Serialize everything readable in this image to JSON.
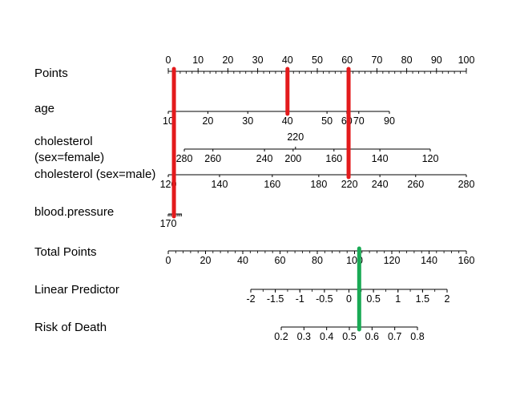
{
  "chart_data": {
    "type": "nomogram",
    "rows": [
      {
        "id": "points",
        "label_lines": [
          "Points"
        ],
        "scale": {
          "start": 0,
          "end": 100,
          "minor_step": 2
        },
        "labels": [
          {
            "text": "0",
            "v": 0
          },
          {
            "text": "10",
            "v": 10
          },
          {
            "text": "20",
            "v": 20
          },
          {
            "text": "30",
            "v": 30
          },
          {
            "text": "40",
            "v": 40
          },
          {
            "text": "50",
            "v": 50
          },
          {
            "text": "60",
            "v": 60
          },
          {
            "text": "70",
            "v": 70
          },
          {
            "text": "80",
            "v": 80
          },
          {
            "text": "90",
            "v": 90
          },
          {
            "text": "100",
            "v": 100
          }
        ]
      },
      {
        "id": "age",
        "label_lines": [
          "age"
        ],
        "scale": {
          "start": 0.5,
          "end": 74.2
        },
        "labels": [
          {
            "text": "10",
            "v": 0.5
          },
          {
            "text": "20",
            "v": 13.7
          },
          {
            "text": "30",
            "v": 27.0
          },
          {
            "text": "40",
            "v": 40.2
          },
          {
            "text": "50",
            "v": 53.4
          },
          {
            "text": "60",
            "v": 60.0
          },
          {
            "text": "70",
            "v": 64.0
          },
          {
            "text": "90",
            "v": 74.2
          }
        ]
      },
      {
        "id": "cholesterol-female",
        "label_lines": [
          "cholesterol",
          "(sex=female)"
        ],
        "scale": {
          "start": 5.4,
          "end": 87.9
        },
        "top_labels": [
          {
            "text": "220",
            "v": 42.7
          }
        ],
        "labels": [
          {
            "text": "280",
            "v": 5.4
          },
          {
            "text": "260",
            "v": 15.0
          },
          {
            "text": "240",
            "v": 32.3
          },
          {
            "text": "200",
            "v": 41.9
          },
          {
            "text": "160",
            "v": 55.6
          },
          {
            "text": "140",
            "v": 71.0
          },
          {
            "text": "120",
            "v": 87.9
          }
        ]
      },
      {
        "id": "cholesterol-male",
        "label_lines": [
          "cholesterol (sex=male)"
        ],
        "scale": {
          "start": 0,
          "end": 100
        },
        "labels": [
          {
            "text": "120",
            "v": 0
          },
          {
            "text": "140",
            "v": 17.2
          },
          {
            "text": "160",
            "v": 34.9
          },
          {
            "text": "180",
            "v": 50.5
          },
          {
            "text": "220",
            "v": 60.8
          },
          {
            "text": "240",
            "v": 71.0
          },
          {
            "text": "260",
            "v": 83.0
          },
          {
            "text": "280",
            "v": 100
          }
        ]
      },
      {
        "id": "blood-pressure",
        "label_lines": [
          "blood.pressure"
        ],
        "scale": {
          "start": 0,
          "end": 4.6,
          "minor_step": 0.5
        },
        "labels": [
          {
            "text": "170",
            "v": 0
          }
        ]
      },
      {
        "id": "total-points",
        "label_lines": [
          "Total Points"
        ],
        "scale": {
          "start": 0,
          "end": 160,
          "minor_step": 4
        },
        "labels": [
          {
            "text": "0",
            "v": 0
          },
          {
            "text": "20",
            "v": 20
          },
          {
            "text": "40",
            "v": 40
          },
          {
            "text": "60",
            "v": 60
          },
          {
            "text": "80",
            "v": 80
          },
          {
            "text": "100",
            "v": 100
          },
          {
            "text": "120",
            "v": 120
          },
          {
            "text": "140",
            "v": 140
          },
          {
            "text": "160",
            "v": 160
          }
        ]
      },
      {
        "id": "linear-predictor",
        "label_lines": [
          "Linear Predictor"
        ],
        "scale": {
          "start": -2,
          "end": 2,
          "minor_step": 0.25
        },
        "labels": [
          {
            "text": "-2",
            "v": -2
          },
          {
            "text": "-1.5",
            "v": -1.5
          },
          {
            "text": "-1",
            "v": -1
          },
          {
            "text": "-0.5",
            "v": -0.5
          },
          {
            "text": "0",
            "v": 0
          },
          {
            "text": "0.5",
            "v": 0.5
          },
          {
            "text": "1",
            "v": 1
          },
          {
            "text": "1.5",
            "v": 1.5
          },
          {
            "text": "2",
            "v": 2
          }
        ]
      },
      {
        "id": "risk-of-death",
        "label_lines": [
          "Risk of Death"
        ],
        "scale": {
          "start": 0.2,
          "end": 0.8
        },
        "labels": [
          {
            "text": "0.2",
            "v": 0.2
          },
          {
            "text": "0.3",
            "v": 0.3
          },
          {
            "text": "0.4",
            "v": 0.4
          },
          {
            "text": "0.5",
            "v": 0.5
          },
          {
            "text": "0.6",
            "v": 0.6
          },
          {
            "text": "0.7",
            "v": 0.7
          },
          {
            "text": "0.8",
            "v": 0.8
          }
        ]
      }
    ],
    "markers": [
      {
        "name": "marker-red-1",
        "color": "#e31a1c",
        "axis_row": "points",
        "value": 1.9,
        "from_row": "points",
        "to_row": "blood-pressure"
      },
      {
        "name": "marker-red-2",
        "color": "#e31a1c",
        "axis_row": "points",
        "value": 40,
        "from_row": "points",
        "to_row": "age"
      },
      {
        "name": "marker-red-3",
        "color": "#e31a1c",
        "axis_row": "points",
        "value": 60.5,
        "from_row": "points",
        "to_row": "cholesterol-male"
      },
      {
        "name": "marker-green",
        "color": "#1aaa55",
        "axis_row": "total-points",
        "value": 102.5,
        "from_row": "total-points",
        "to_row": "risk-of-death"
      }
    ]
  }
}
